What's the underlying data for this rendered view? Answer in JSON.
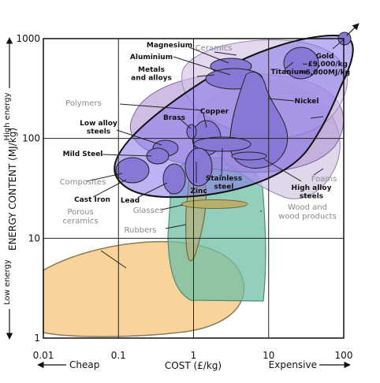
{
  "chart_data": {
    "type": "scatter",
    "subtype": "bubble-region-map",
    "xlabel": "COST (£/kg)",
    "ylabel": "ENERGY CONTENT (MJ/kg)",
    "x_scale": "log",
    "y_scale": "log",
    "xlim": [
      0.01,
      100
    ],
    "ylim": [
      1,
      1000
    ],
    "grid": true,
    "x_tick_labels": [
      "0.01",
      "0.1",
      "1",
      "10",
      "100"
    ],
    "y_tick_labels": [
      "1",
      "10",
      "100",
      "1000"
    ],
    "x_axis_annotations": {
      "left": "Cheap",
      "right": "Expensive"
    },
    "y_axis_annotations": {
      "bottom": "Low energy",
      "top": "High energy"
    },
    "colors": {
      "metals_envelope": "#7f6fe6",
      "metal_bubbles": "#8878d6",
      "ceramics": "#c8b3dc",
      "polymers": "#b79ad6",
      "foams": "#cfc3df",
      "wood": "#6fbfa5",
      "glasses": "#b8b06a",
      "rubbers": "#a9a87f",
      "porous_ceramics": "#f8d49a",
      "grid": "#222222"
    },
    "regions": [
      {
        "id": "porous-ceramics",
        "label": "Porous\nceramics",
        "label_color": "gray",
        "x_range": [
          0.01,
          3
        ],
        "y_range": [
          1.2,
          9
        ]
      },
      {
        "id": "wood",
        "label": "Wood and\nwood products",
        "label_color": "gray",
        "x_range": [
          0.9,
          8
        ],
        "y_range": [
          2.6,
          65
        ]
      },
      {
        "id": "glasses",
        "label": "Glasses",
        "label_color": "gray",
        "x_range": [
          0.95,
          7
        ],
        "y_range": [
          21,
          24
        ]
      },
      {
        "id": "rubbers",
        "label": "Rubbers",
        "label_color": "gray",
        "x_range": [
          1,
          2.5
        ],
        "y_range": [
          6,
          60
        ]
      },
      {
        "id": "foams",
        "label": "Foams",
        "label_color": "gray",
        "x_range": [
          3,
          60
        ],
        "y_range": [
          50,
          150
        ]
      },
      {
        "id": "polymers",
        "label": "Polymers",
        "label_color": "gray",
        "x_range": [
          0.2,
          60
        ],
        "y_range": [
          60,
          300
        ]
      },
      {
        "id": "ceramics",
        "label": "Ceramics",
        "label_color": "gray",
        "x_range": [
          0.5,
          50
        ],
        "y_range": [
          100,
          800
        ]
      },
      {
        "id": "composites",
        "label": "Composites",
        "label_color": "gray",
        "x_range": [
          0.1,
          50
        ],
        "y_range": [
          35,
          700
        ]
      },
      {
        "id": "metals",
        "label": "Metals\nand alloys",
        "label_color": "black",
        "x_range": [
          0.12,
          100
        ],
        "y_range": [
          25,
          1000
        ]
      }
    ],
    "metals": [
      {
        "name": "Magnesium",
        "x": [
          1.5,
          5
        ],
        "y": [
          250,
          400
        ]
      },
      {
        "name": "Aluminium",
        "x": [
          1.5,
          5
        ],
        "y": [
          180,
          300
        ]
      },
      {
        "name": "Titanium",
        "x": [
          15,
          40
        ],
        "y": [
          450,
          800
        ]
      },
      {
        "name": "Gold",
        "x": [
          100,
          100
        ],
        "y": [
          1000,
          1000
        ],
        "note": "~£9,000/kg\n~6,000MJ/kg"
      },
      {
        "name": "Nickel",
        "x": [
          4,
          15
        ],
        "y": [
          60,
          500
        ]
      },
      {
        "name": "Copper",
        "x": [
          1.5,
          3
        ],
        "y": [
          60,
          110
        ]
      },
      {
        "name": "Brass",
        "x": [
          1.1,
          1.6
        ],
        "y": [
          80,
          110
        ]
      },
      {
        "name": "Low alloy\nsteels",
        "x": [
          0.3,
          0.7
        ],
        "y": [
          50,
          80
        ]
      },
      {
        "name": "Mild Steel",
        "x": [
          0.4,
          0.6
        ],
        "y": [
          45,
          60
        ]
      },
      {
        "name": "Cast Iron",
        "x": [
          0.13,
          0.4
        ],
        "y": [
          30,
          50
        ]
      },
      {
        "name": "Lead",
        "x": [
          0.7,
          1.0
        ],
        "y": [
          30,
          50
        ]
      },
      {
        "name": "Zinc",
        "x": [
          1.5,
          2.5
        ],
        "y": [
          40,
          80
        ]
      },
      {
        "name": "Stainless\nsteel",
        "x": [
          1.5,
          6
        ],
        "y": [
          70,
          85
        ]
      },
      {
        "name": "High alloy\nsteels",
        "x": [
          5,
          12
        ],
        "y": [
          50,
          55
        ]
      }
    ]
  }
}
